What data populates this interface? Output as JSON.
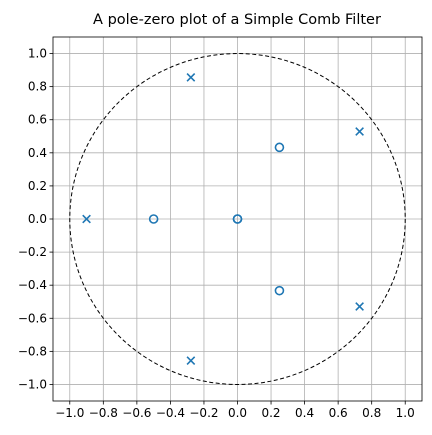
{
  "chart_data": {
    "type": "scatter",
    "title": "A pole-zero plot of a Simple Comb Filter",
    "xlabel": "",
    "ylabel": "",
    "xlim": [
      -1.1,
      1.1
    ],
    "ylim": [
      -1.1,
      1.1
    ],
    "grid": true,
    "xticks": [
      -1.0,
      -0.8,
      -0.6,
      -0.4,
      -0.2,
      0.0,
      0.2,
      0.4,
      0.6,
      0.8,
      1.0
    ],
    "yticks": [
      -1.0,
      -0.8,
      -0.6,
      -0.4,
      -0.2,
      0.0,
      0.2,
      0.4,
      0.6,
      0.8,
      1.0
    ],
    "xtick_labels": [
      "−1.0",
      "−0.8",
      "−0.6",
      "−0.4",
      "−0.2",
      "0.0",
      "0.2",
      "0.4",
      "0.6",
      "0.8",
      "1.0"
    ],
    "ytick_labels": [
      "−1.0",
      "−0.8",
      "−0.6",
      "−0.4",
      "−0.2",
      "0.0",
      "0.2",
      "0.4",
      "0.6",
      "0.8",
      "1.0"
    ],
    "unit_circle": {
      "center": [
        0,
        0
      ],
      "radius": 1,
      "style": "dashed",
      "color": "#000000"
    },
    "series": [
      {
        "marker": "o",
        "color": "#1f77b4",
        "points": [
          {
            "x": 0.0,
            "y": 0.0
          },
          {
            "x": 0.0,
            "y": 0.0
          },
          {
            "x": -0.5,
            "y": 0.0
          },
          {
            "x": 0.25,
            "y": 0.433
          },
          {
            "x": 0.25,
            "y": -0.433
          }
        ]
      },
      {
        "marker": "x",
        "color": "#1f77b4",
        "points": [
          {
            "x": -0.9,
            "y": 0.0
          },
          {
            "x": -0.278,
            "y": 0.856
          },
          {
            "x": -0.278,
            "y": -0.856
          },
          {
            "x": 0.728,
            "y": 0.529
          },
          {
            "x": 0.728,
            "y": -0.529
          }
        ]
      }
    ]
  }
}
